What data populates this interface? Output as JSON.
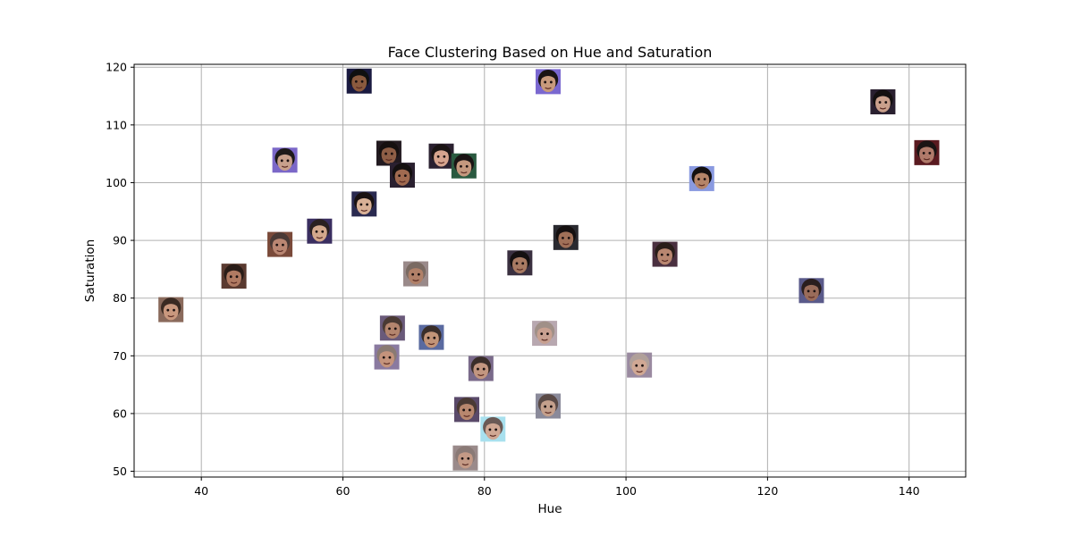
{
  "chart_data": {
    "type": "scatter",
    "title": "Face Clustering Based on Hue and Saturation",
    "xlabel": "Hue",
    "ylabel": "Saturation",
    "xlim": [
      30.5,
      148
    ],
    "ylim": [
      49,
      120.5
    ],
    "xticks": [
      40,
      60,
      80,
      100,
      120,
      140
    ],
    "yticks": [
      50,
      60,
      70,
      80,
      90,
      100,
      110,
      120
    ],
    "grid": true,
    "marker": "face-thumbnail",
    "points": [
      {
        "x": 35.7,
        "y": 78.0,
        "skin": "#c9987e",
        "hair": "#3a2a22",
        "bg": "#8a6a5c"
      },
      {
        "x": 44.6,
        "y": 83.8,
        "skin": "#b07a62",
        "hair": "#2a1d18",
        "bg": "#5a3a30"
      },
      {
        "x": 51.1,
        "y": 89.3,
        "skin": "#b98672",
        "hair": "#4a3a36",
        "bg": "#7a4a3a"
      },
      {
        "x": 51.8,
        "y": 103.9,
        "skin": "#c8a08c",
        "hair": "#1e1a1a",
        "bg": "#7b67c8"
      },
      {
        "x": 56.7,
        "y": 91.6,
        "skin": "#d3a88c",
        "hair": "#2a2020",
        "bg": "#3a2e60"
      },
      {
        "x": 62.3,
        "y": 117.6,
        "skin": "#8a5a3e",
        "hair": "#101010",
        "bg": "#1a1a40"
      },
      {
        "x": 63.0,
        "y": 96.3,
        "skin": "#d8b096",
        "hair": "#1a1212",
        "bg": "#2a2a50"
      },
      {
        "x": 66.5,
        "y": 105.1,
        "skin": "#8e5e46",
        "hair": "#151010",
        "bg": "#221a20"
      },
      {
        "x": 67.0,
        "y": 74.8,
        "skin": "#b4856e",
        "hair": "#4a3a34",
        "bg": "#6a5a7a"
      },
      {
        "x": 66.2,
        "y": 69.8,
        "skin": "#c4937c",
        "hair": "#8a7a72",
        "bg": "#8a7aa0"
      },
      {
        "x": 68.4,
        "y": 101.3,
        "skin": "#a06a50",
        "hair": "#141010",
        "bg": "#2a2030"
      },
      {
        "x": 70.3,
        "y": 84.2,
        "skin": "#b08068",
        "hair": "#7a6a62",
        "bg": "#9a8a8a"
      },
      {
        "x": 72.5,
        "y": 73.2,
        "skin": "#c29478",
        "hair": "#3a2e2a",
        "bg": "#5a6aa0"
      },
      {
        "x": 73.9,
        "y": 104.6,
        "skin": "#d6a48e",
        "hair": "#1a1414",
        "bg": "#2a2030"
      },
      {
        "x": 77.1,
        "y": 102.9,
        "skin": "#c4987e",
        "hair": "#1a1414",
        "bg": "#2a5a40"
      },
      {
        "x": 77.5,
        "y": 60.7,
        "skin": "#b8876e",
        "hair": "#4a3a34",
        "bg": "#5a4a6a"
      },
      {
        "x": 77.3,
        "y": 52.3,
        "skin": "#c49a86",
        "hair": "#8a7a76",
        "bg": "#9a8a8a"
      },
      {
        "x": 79.5,
        "y": 67.8,
        "skin": "#c29680",
        "hair": "#3a2e2a",
        "bg": "#7a6a8a"
      },
      {
        "x": 81.2,
        "y": 57.3,
        "skin": "#d0a894",
        "hair": "#6a5a56",
        "bg": "#a8e0ee"
      },
      {
        "x": 85.0,
        "y": 86.1,
        "skin": "#a87a62",
        "hair": "#141010",
        "bg": "#3a3040"
      },
      {
        "x": 88.5,
        "y": 73.9,
        "skin": "#c8a090",
        "hair": "#a09088",
        "bg": "#b8a8b0"
      },
      {
        "x": 89.0,
        "y": 117.5,
        "skin": "#c89a7c",
        "hair": "#1a1414",
        "bg": "#7a68d0"
      },
      {
        "x": 89.0,
        "y": 61.3,
        "skin": "#c4a08c",
        "hair": "#5a4a46",
        "bg": "#8a8a9a"
      },
      {
        "x": 91.5,
        "y": 90.5,
        "skin": "#a07058",
        "hair": "#151010",
        "bg": "#2a2a30"
      },
      {
        "x": 101.9,
        "y": 68.4,
        "skin": "#d0a894",
        "hair": "#b0a09a",
        "bg": "#9a8aa0"
      },
      {
        "x": 105.5,
        "y": 87.6,
        "skin": "#b88670",
        "hair": "#2a1e1a",
        "bg": "#4a3040"
      },
      {
        "x": 110.7,
        "y": 100.7,
        "skin": "#b48468",
        "hair": "#141010",
        "bg": "#8a9ae0"
      },
      {
        "x": 126.2,
        "y": 81.3,
        "skin": "#9a6c5a",
        "hair": "#2a1e1e",
        "bg": "#5a5a8a"
      },
      {
        "x": 136.3,
        "y": 114.0,
        "skin": "#caa08c",
        "hair": "#141010",
        "bg": "#2a2030"
      },
      {
        "x": 142.5,
        "y": 105.2,
        "skin": "#b07a6a",
        "hair": "#1a1414",
        "bg": "#5a1a20"
      }
    ]
  }
}
